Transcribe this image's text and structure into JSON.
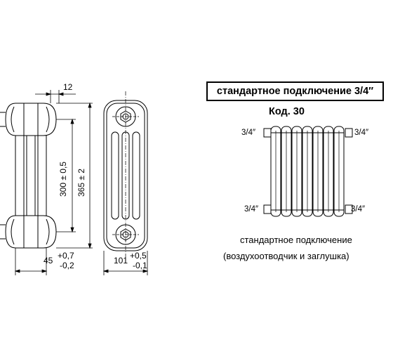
{
  "side_view": {
    "top_dim": "12",
    "center_dim": "300 ± 0,5",
    "height_dim": "365 ± 2",
    "depth_base": "45",
    "depth_tol_plus": "+0,7",
    "depth_tol_minus": "-0,2"
  },
  "front_view": {
    "width_base": "101",
    "width_tol_plus": "+0,5",
    "width_tol_minus": "-0,1"
  },
  "connection": {
    "title": "стандартное подключение 3/4″",
    "code": "Код. 30",
    "port_tl": "3/4″",
    "port_tr": "3/4″",
    "port_bl": "3/4″",
    "port_br": "3/4″",
    "caption_line1": "стандартное подключение",
    "caption_line2": "(воздухоотводчик и заглушка)"
  }
}
